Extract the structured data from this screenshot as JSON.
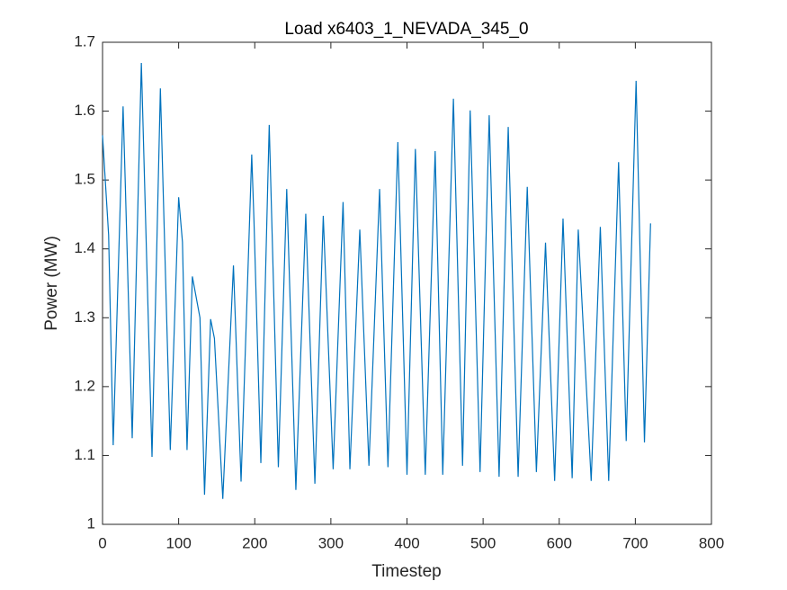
{
  "chart_data": {
    "type": "line",
    "title": "Load x6403_1_NEVADA_345_0",
    "xlabel": "Timestep",
    "ylabel": "Power (MW)",
    "x": [
      0,
      8,
      14,
      27,
      30,
      39,
      51,
      65,
      76,
      89,
      100,
      105,
      111,
      118,
      128,
      134,
      142,
      147,
      158,
      172,
      182,
      196,
      199,
      208,
      219,
      231,
      242,
      254,
      267,
      279,
      290,
      303,
      316,
      325,
      338,
      350,
      364,
      375,
      388,
      400,
      411,
      424,
      437,
      447,
      461,
      473,
      483,
      496,
      508,
      521,
      533,
      546,
      558,
      570,
      582,
      594,
      605,
      617,
      625,
      642,
      654,
      665,
      678,
      688,
      701,
      712,
      720
    ],
    "series": [
      {
        "name": "Load",
        "color": "#0072bd",
        "values": [
          1.565,
          1.42,
          1.115,
          1.607,
          1.49,
          1.125,
          1.67,
          1.098,
          1.633,
          1.108,
          1.475,
          1.41,
          1.108,
          1.36,
          1.3,
          1.043,
          1.298,
          1.27,
          1.037,
          1.376,
          1.062,
          1.537,
          1.44,
          1.089,
          1.58,
          1.083,
          1.487,
          1.05,
          1.451,
          1.059,
          1.448,
          1.08,
          1.468,
          1.08,
          1.428,
          1.085,
          1.487,
          1.083,
          1.555,
          1.072,
          1.545,
          1.072,
          1.542,
          1.072,
          1.618,
          1.085,
          1.601,
          1.076,
          1.594,
          1.069,
          1.577,
          1.069,
          1.49,
          1.076,
          1.409,
          1.063,
          1.444,
          1.067,
          1.428,
          1.063,
          1.432,
          1.063,
          1.526,
          1.121,
          1.644,
          1.119,
          1.437
        ]
      }
    ],
    "xlim": [
      0,
      800
    ],
    "xticks": [
      0,
      100,
      200,
      300,
      400,
      500,
      600,
      700,
      800
    ],
    "ylim": [
      1,
      1.7
    ],
    "yticks": [
      1,
      {
        "value": 1.1,
        "label": "1.1"
      },
      {
        "value": 1.2,
        "label": "1.2"
      },
      {
        "value": 1.3,
        "label": "1.3"
      },
      {
        "value": 1.4,
        "label": "1.4"
      },
      {
        "value": 1.5,
        "label": "1.5"
      },
      {
        "value": 1.6,
        "label": "1.6"
      },
      {
        "value": 1.7,
        "label": "1.7"
      }
    ]
  }
}
